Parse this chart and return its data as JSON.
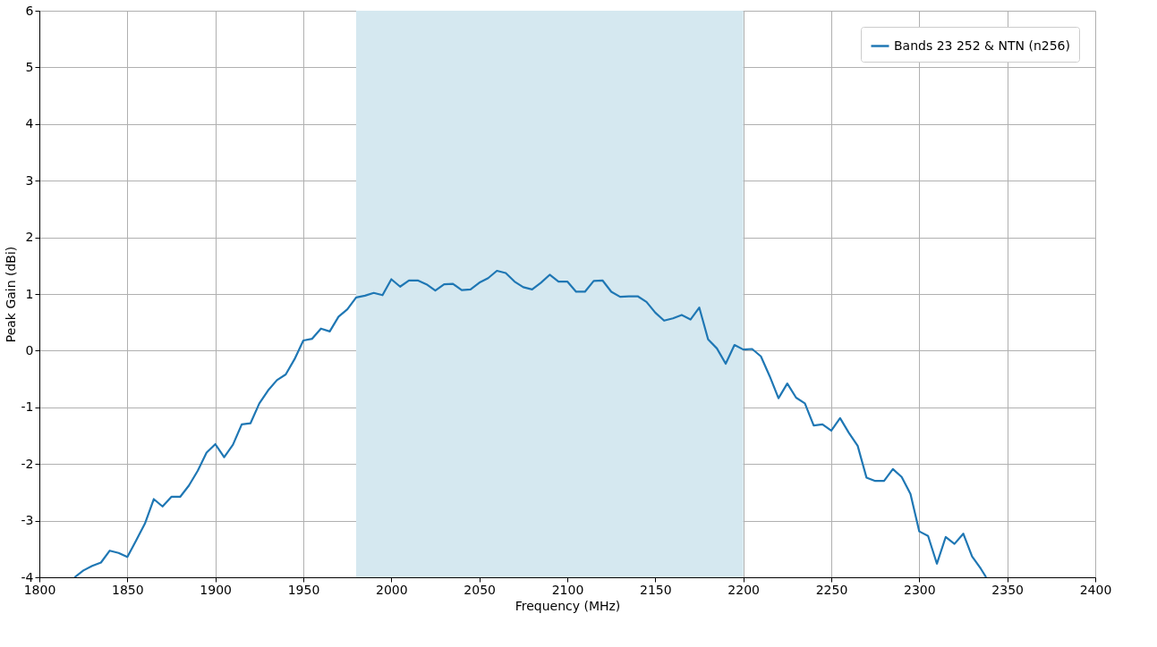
{
  "chart_data": {
    "type": "line",
    "xlabel": "Frequency (MHz)",
    "ylabel": "Peak Gain (dBi)",
    "xlim": [
      1800,
      2400
    ],
    "xticks": [
      1800,
      1850,
      1900,
      1950,
      2000,
      2050,
      2100,
      2150,
      2200,
      2250,
      2300,
      2350,
      2400
    ],
    "ylim": [
      -4,
      6
    ],
    "yticks": [
      -4,
      -3,
      -2,
      -1,
      0,
      1,
      2,
      3,
      4,
      5,
      6
    ],
    "grid": true,
    "legend": "top right",
    "marker": "none",
    "line_style": "solid",
    "bands": [
      {
        "axis": "x",
        "from": 1980,
        "to": 2200,
        "color": "#d5e8f0"
      }
    ],
    "x": [
      1820,
      1825,
      1830,
      1835,
      1840,
      1845,
      1850,
      1855,
      1860,
      1865,
      1870,
      1875,
      1880,
      1885,
      1890,
      1895,
      1900,
      1905,
      1910,
      1915,
      1920,
      1925,
      1930,
      1935,
      1940,
      1945,
      1950,
      1955,
      1960,
      1965,
      1970,
      1975,
      1980,
      1985,
      1990,
      1995,
      2000,
      2005,
      2010,
      2015,
      2020,
      2025,
      2030,
      2035,
      2040,
      2045,
      2050,
      2055,
      2060,
      2065,
      2070,
      2075,
      2080,
      2085,
      2090,
      2095,
      2100,
      2105,
      2110,
      2115,
      2120,
      2125,
      2130,
      2135,
      2140,
      2145,
      2150,
      2155,
      2160,
      2165,
      2170,
      2175,
      2180,
      2185,
      2190,
      2195,
      2200,
      2205,
      2210,
      2215,
      2220,
      2225,
      2230,
      2235,
      2240,
      2245,
      2250,
      2255,
      2260,
      2265,
      2270,
      2275,
      2280,
      2285,
      2290,
      2295,
      2300,
      2305,
      2310,
      2315,
      2320,
      2325,
      2330,
      2335,
      2338
    ],
    "series": [
      {
        "name": "Bands 23 252 & NTN (n256)",
        "color": "#1f77b4",
        "values": [
          -4.0,
          -3.88,
          -3.8,
          -3.74,
          -3.53,
          -3.57,
          -3.64,
          -3.35,
          -3.05,
          -2.62,
          -2.75,
          -2.58,
          -2.58,
          -2.38,
          -2.12,
          -1.8,
          -1.65,
          -1.88,
          -1.66,
          -1.3,
          -1.28,
          -0.93,
          -0.7,
          -0.52,
          -0.42,
          -0.15,
          0.18,
          0.21,
          0.39,
          0.34,
          0.6,
          0.73,
          0.94,
          0.97,
          1.02,
          0.98,
          1.26,
          1.13,
          1.24,
          1.24,
          1.17,
          1.06,
          1.17,
          1.18,
          1.07,
          1.08,
          1.2,
          1.28,
          1.41,
          1.37,
          1.22,
          1.12,
          1.08,
          1.2,
          1.34,
          1.22,
          1.22,
          1.04,
          1.04,
          1.23,
          1.24,
          1.04,
          0.95,
          0.96,
          0.96,
          0.86,
          0.67,
          0.53,
          0.57,
          0.63,
          0.55,
          0.76,
          0.2,
          0.04,
          -0.23,
          0.1,
          0.02,
          0.03,
          -0.1,
          -0.45,
          -0.84,
          -0.58,
          -0.83,
          -0.93,
          -1.32,
          -1.3,
          -1.41,
          -1.19,
          -1.45,
          -1.68,
          -2.24,
          -2.3,
          -2.3,
          -2.09,
          -2.23,
          -2.53,
          -3.19,
          -3.27,
          -3.76,
          -3.29,
          -3.41,
          -3.23,
          -3.63,
          -3.85,
          -4.0
        ]
      }
    ]
  }
}
